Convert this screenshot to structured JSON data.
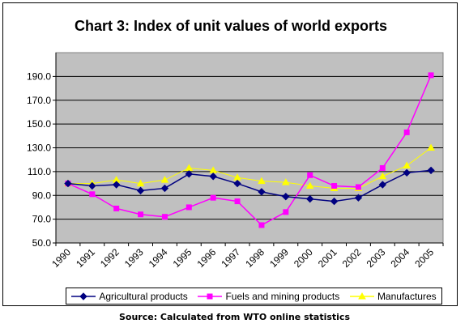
{
  "chart_data": {
    "type": "line",
    "title": "Chart 3: Index of unit values of world exports",
    "xlabel": "",
    "ylabel": "",
    "categories": [
      "1990",
      "1991",
      "1992",
      "1993",
      "1994",
      "1995",
      "1996",
      "1997",
      "1998",
      "1999",
      "2000",
      "2001",
      "2002",
      "2003",
      "2004",
      "2005"
    ],
    "y_ticks": [
      "50.0",
      "70.0",
      "90.0",
      "110.0",
      "130.0",
      "150.0",
      "170.0",
      "190.0"
    ],
    "ylim": [
      50,
      210
    ],
    "grid": true,
    "legend_position": "bottom",
    "plot_background": "#c0c0c0",
    "series": [
      {
        "name": "Agricultural products",
        "color": "#000080",
        "marker": "diamond",
        "values": [
          100,
          98,
          99,
          94,
          96,
          108,
          106,
          100,
          93,
          89,
          87,
          85,
          88,
          99,
          109,
          111
        ]
      },
      {
        "name": "Fuels and mining  products",
        "color": "#ff00ff",
        "marker": "square",
        "values": [
          100,
          91,
          79,
          74,
          72,
          80,
          88,
          85,
          65,
          76,
          107,
          98,
          97,
          113,
          143,
          191
        ]
      },
      {
        "name": "Manufactures",
        "color": "#ffff00",
        "marker": "triangle",
        "values": [
          100,
          100,
          103,
          100,
          103,
          113,
          111,
          105,
          102,
          101,
          98,
          96,
          96,
          106,
          115,
          130
        ]
      }
    ]
  },
  "source_note": "Source: Calculated from WTO online statistics"
}
